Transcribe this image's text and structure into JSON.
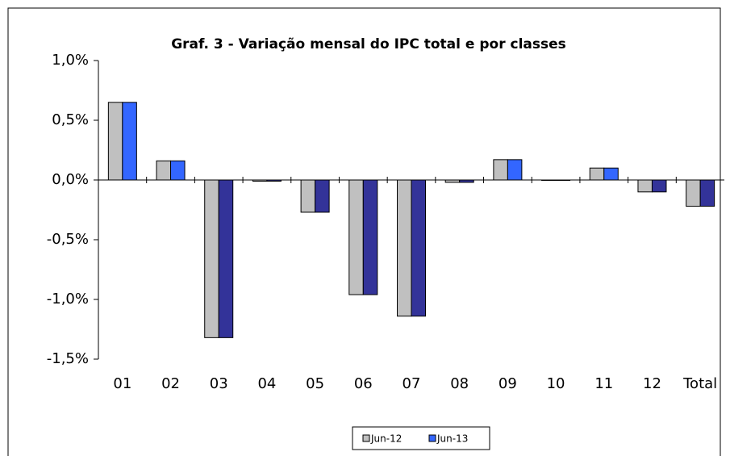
{
  "chart_data": {
    "type": "bar",
    "title": "Graf. 3 - Variação mensal do IPC total e por classes",
    "categories": [
      "01",
      "02",
      "03",
      "04",
      "05",
      "06",
      "07",
      "08",
      "09",
      "10",
      "11",
      "12",
      "Total"
    ],
    "series": [
      {
        "name": "Jun-12",
        "color": "#c0c0c0",
        "negative_color": "#c0c0c0",
        "values": [
          0.65,
          0.16,
          -1.32,
          -0.01,
          -0.27,
          -0.96,
          -1.14,
          -0.02,
          0.17,
          0,
          0.1,
          -0.1,
          -0.22
        ]
      },
      {
        "name": "Jun-13",
        "color": "#3366ff",
        "negative_color": "#333399",
        "values": [
          0.65,
          0.16,
          -1.32,
          -0.01,
          -0.27,
          -0.96,
          -1.14,
          -0.02,
          0.17,
          0,
          0.1,
          -0.1,
          -0.22
        ]
      }
    ],
    "ylim": [
      -1.5,
      1.0
    ],
    "yticks": [
      {
        "value": -1.5,
        "label": "-1,5%"
      },
      {
        "value": -1.0,
        "label": "-1,0%"
      },
      {
        "value": -0.5,
        "label": "-0,5%"
      },
      {
        "value": 0,
        "label": "0,0%"
      },
      {
        "value": 0.5,
        "label": "0,5%"
      },
      {
        "value": 1.0,
        "label": "1,0%"
      }
    ],
    "grid": false,
    "legend": "bottom"
  }
}
